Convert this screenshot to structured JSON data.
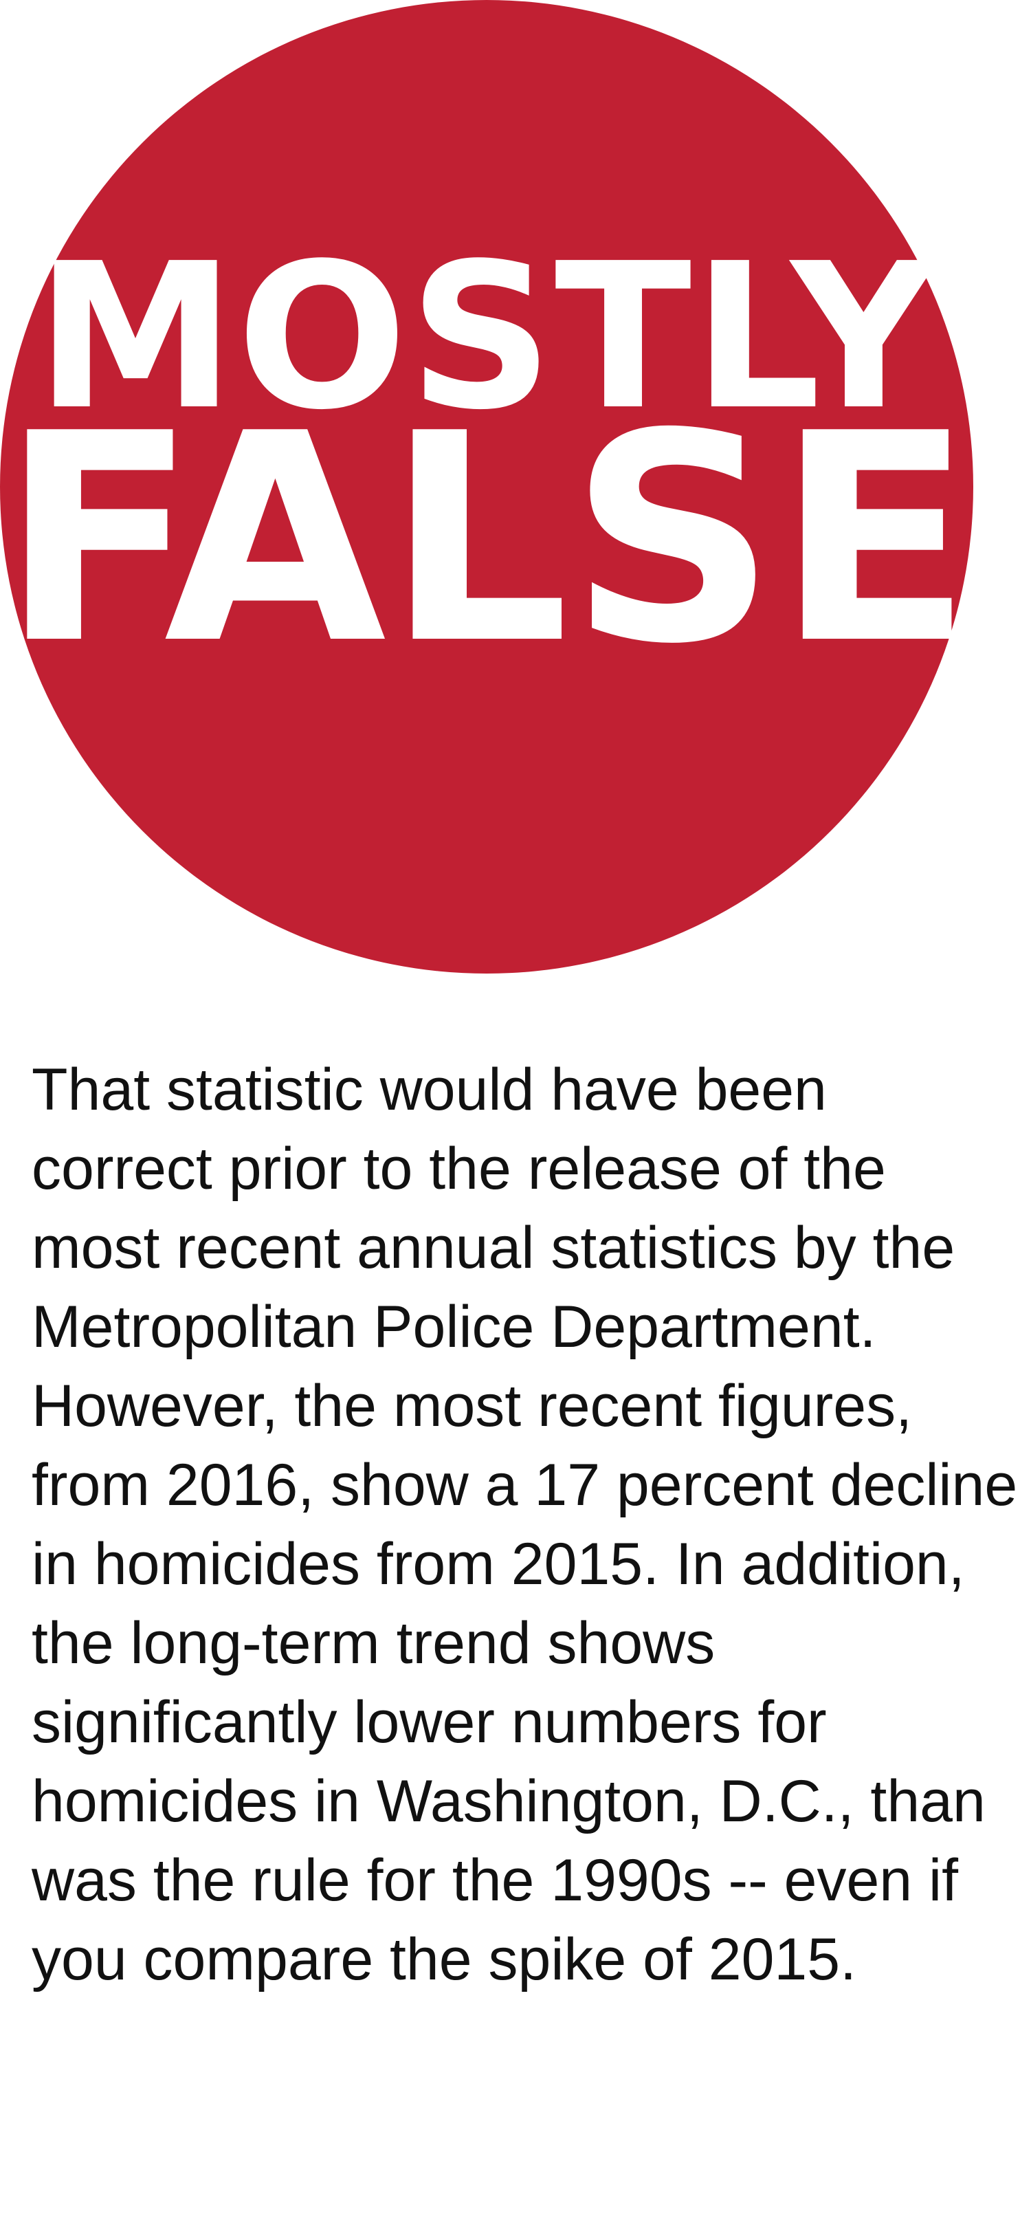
{
  "rating": {
    "line1": "MOSTLY",
    "line2": "FALSE",
    "circle_color": "#c12033",
    "text_color": "#ffffff"
  },
  "explanation": {
    "text": "That statistic would have been correct prior to the release of the most recent annual statistics by the Metropolitan Police Department. However, the most recent figures, from 2016, show a 17 percent decline in homicides from 2015. In addition, the long-term trend shows significantly lower numbers for homicides in Washington, D.C., than was the rule for the 1990s -- even if you compare the spike of 2015."
  }
}
